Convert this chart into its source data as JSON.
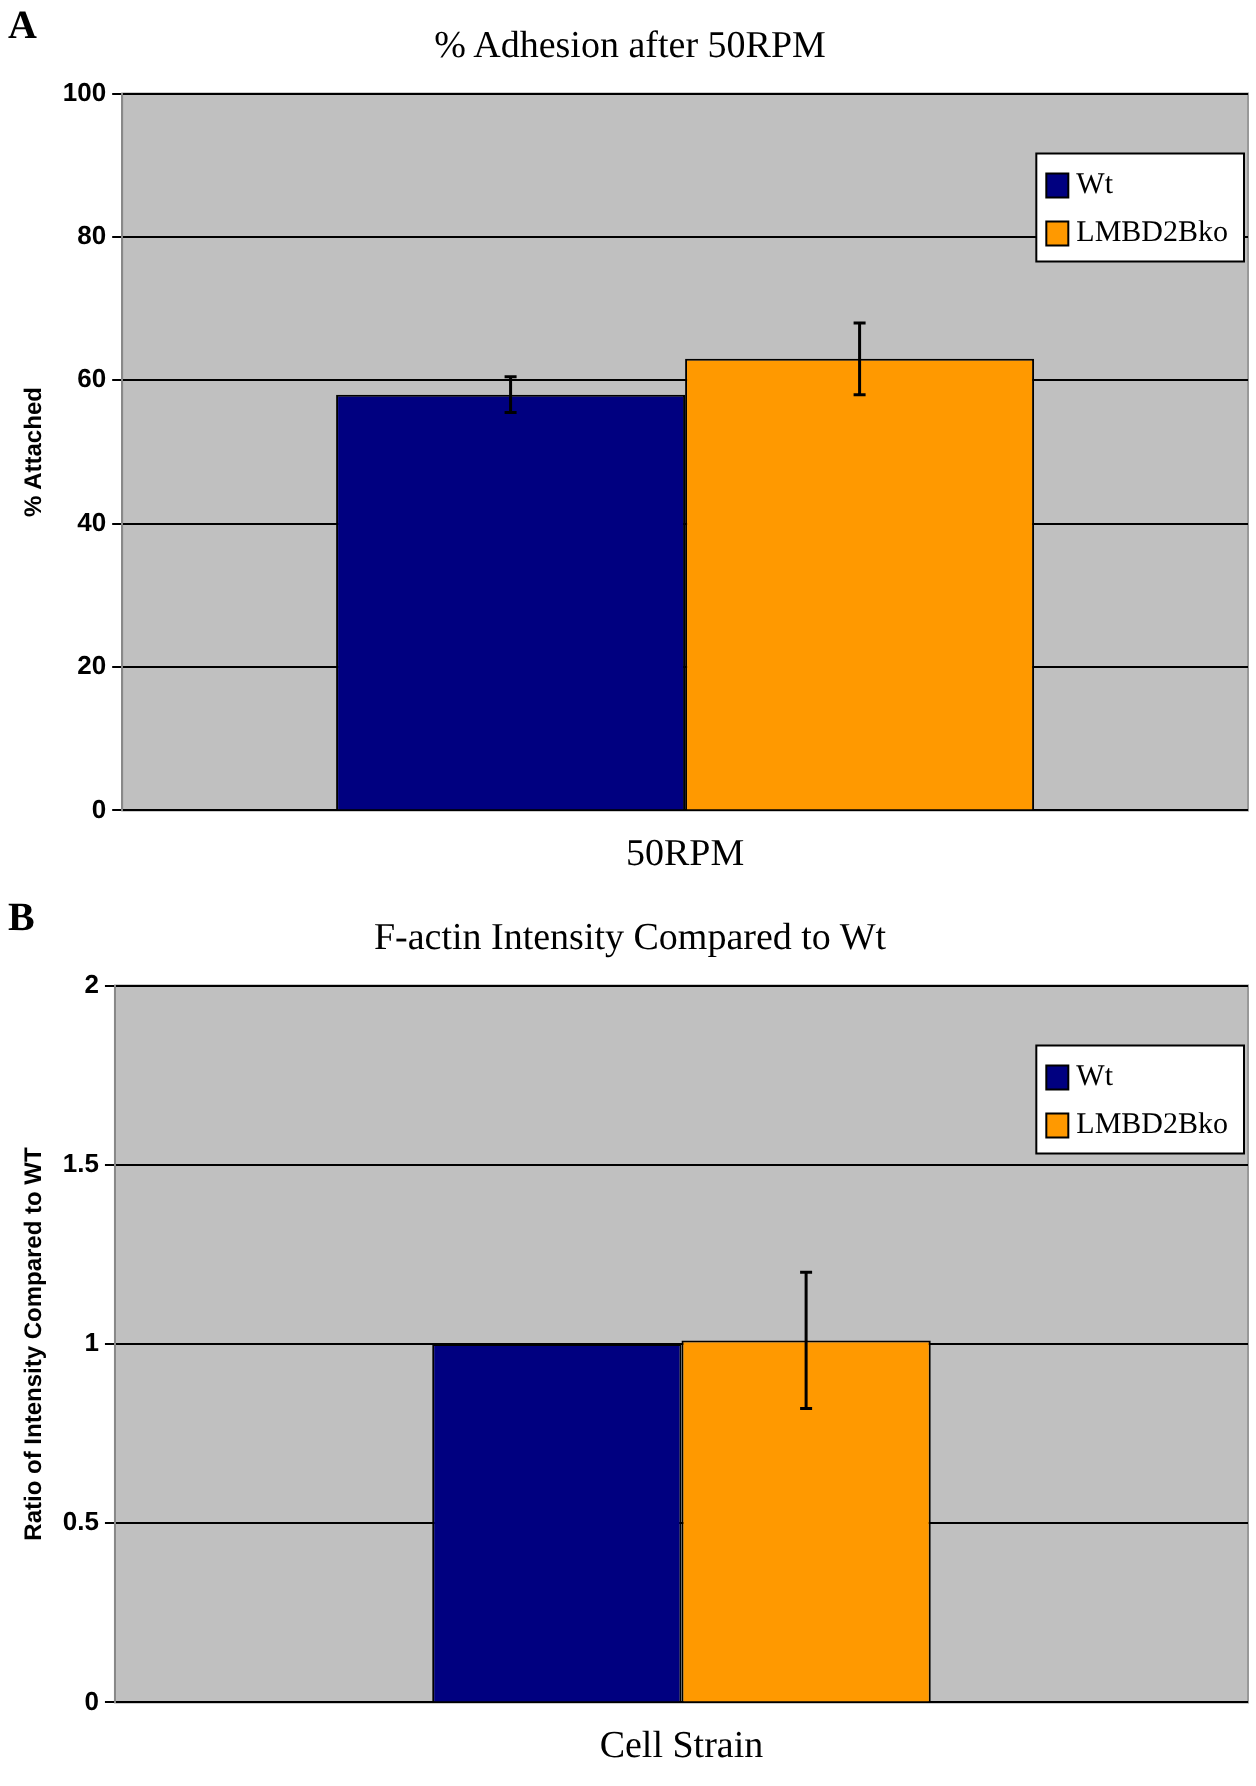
{
  "chart_data": [
    {
      "type": "bar",
      "title": "% Adhesion after 50RPM",
      "ylabel": "% Attached",
      "annotations": [
        "A"
      ],
      "categories": [
        "50RPM"
      ],
      "series": [
        {
          "name": "Wt",
          "color": "#000080",
          "values": [
            58
          ],
          "errors": [
            2.5
          ]
        },
        {
          "name": "LMBD2Bko",
          "color": "#ff9900",
          "values": [
            63
          ],
          "errors": [
            5
          ]
        }
      ],
      "ylim": [
        0,
        100
      ],
      "yticks": [
        0,
        20,
        40,
        60,
        80,
        100
      ],
      "grid": "y",
      "legend": "top right"
    },
    {
      "type": "bar",
      "title": "F-actin Intensity Compared to Wt",
      "ylabel": "Ratio of Intensity Compared to WT",
      "annotations": [
        "B"
      ],
      "categories": [
        "Cell Strain"
      ],
      "series": [
        {
          "name": "Wt",
          "color": "#000080",
          "values": [
            1.0
          ]
        },
        {
          "name": "LMBD2Bko",
          "color": "#ff9900",
          "values": [
            1.01
          ],
          "errors": [
            0.19
          ]
        }
      ],
      "ylim": [
        0,
        2
      ],
      "yticks": [
        0,
        0.5,
        1,
        1.5,
        2
      ],
      "grid": "y",
      "legend": "top right"
    }
  ]
}
